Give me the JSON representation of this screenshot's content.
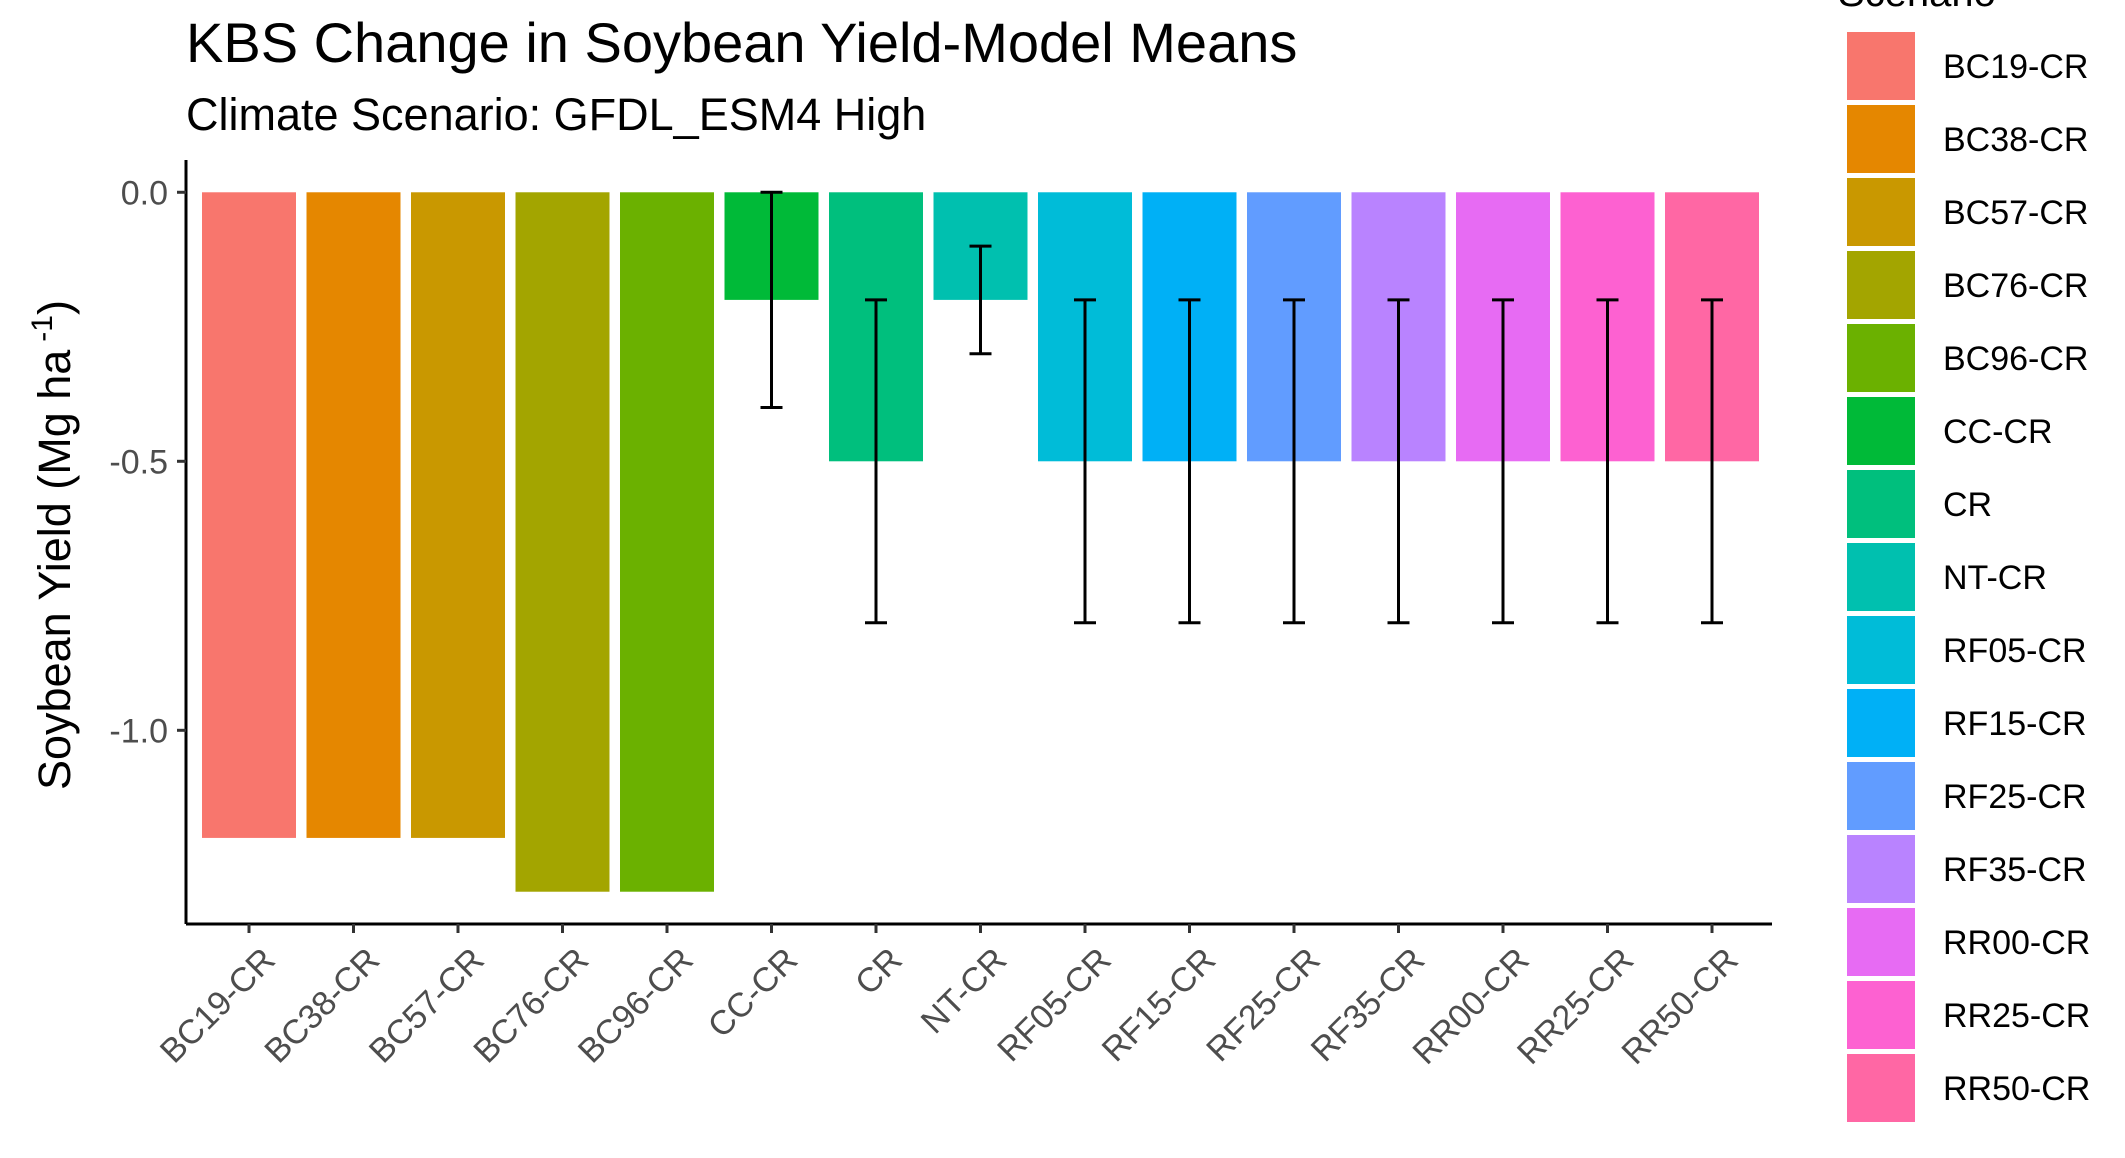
{
  "chart_data": {
    "type": "bar",
    "title": "KBS Change in Soybean Yield-Model Means",
    "subtitle": "Climate Scenario: GFDL_ESM4 High",
    "xlabel": "",
    "ylabel": "Soybean Yield (Mg ha",
    "ylabel_superscript": "-1",
    "ylabel_suffix": ")",
    "legend_title": "Scenario",
    "legend_position": "right",
    "grid": false,
    "ylim": [
      -1.36,
      0.06
    ],
    "yticks": [
      0.0,
      -0.5,
      -1.0
    ],
    "ytick_labels": [
      "0.0",
      "-0.5",
      "-1.0"
    ],
    "categories": [
      "BC19-CR",
      "BC38-CR",
      "BC57-CR",
      "BC76-CR",
      "BC96-CR",
      "CC-CR",
      "CR",
      "NT-CR",
      "RF05-CR",
      "RF15-CR",
      "RF25-CR",
      "RF35-CR",
      "RR00-CR",
      "RR25-CR",
      "RR50-CR"
    ],
    "values": [
      -1.2,
      -1.2,
      -1.2,
      -1.3,
      -1.3,
      -0.2,
      -0.5,
      -0.2,
      -0.5,
      -0.5,
      -0.5,
      -0.5,
      -0.5,
      -0.5,
      -0.5
    ],
    "error_bars": [
      null,
      null,
      null,
      null,
      null,
      [
        -0.4,
        0.0
      ],
      [
        -0.8,
        -0.2
      ],
      [
        -0.3,
        -0.1
      ],
      [
        -0.8,
        -0.2
      ],
      [
        -0.8,
        -0.2
      ],
      [
        -0.8,
        -0.2
      ],
      [
        -0.8,
        -0.2
      ],
      [
        -0.8,
        -0.2
      ],
      [
        -0.8,
        -0.2
      ],
      [
        -0.8,
        -0.2
      ]
    ],
    "colors": [
      "#F8766D",
      "#E58700",
      "#C99800",
      "#A3A500",
      "#6BB100",
      "#00BA38",
      "#00BF7D",
      "#00C0AF",
      "#00BCD8",
      "#00B0F6",
      "#619CFF",
      "#B983FF",
      "#E76BF3",
      "#FD61D1",
      "#FF67A4"
    ]
  }
}
